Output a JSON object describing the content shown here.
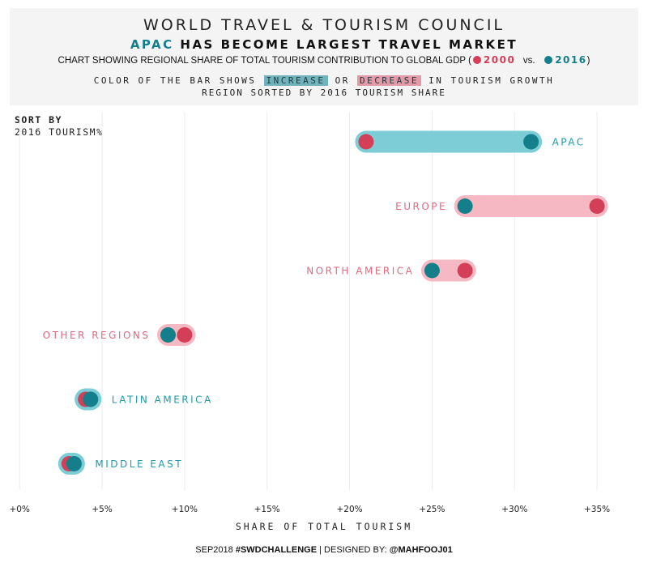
{
  "header": {
    "title": "WORLD TRAVEL & TOURISM COUNCIL",
    "subtitle_accent": "APAC",
    "subtitle_rest": " HAS BECOME LARGEST TRAVEL MARKET",
    "description": "CHART SHOWING REGIONAL SHARE OF TOTAL TOURISM CONTRIBUTION TO GLOBAL GDP (",
    "legend_2000": "2000",
    "legend_vs": "vs.",
    "legend_2016": "2016",
    "description_end": ")",
    "note_prefix": "COLOR OF THE BAR SHOWS",
    "note_increase": "INCREASE",
    "note_or": "OR",
    "note_decrease": "DECREASE",
    "note_suffix": "IN TOURISM GROWTH",
    "note_line2": "REGION SORTED BY 2016 TOURISM SHARE"
  },
  "sort": {
    "label": "SORT BY",
    "value": "2016 TOURISM%"
  },
  "colors": {
    "y2000": "#d23f57",
    "y2016": "#147f8a",
    "increase_bar": "#7ccdd6",
    "decrease_bar": "#f6b9c3",
    "increase_label": "#1f9aa6",
    "decrease_label": "#e0697f",
    "grid": "#ececec"
  },
  "chart_data": {
    "type": "dumbbell",
    "xlabel": "SHARE OF TOTAL TOURISM",
    "xlim": [
      -0.5,
      37.5
    ],
    "ticks": [
      0,
      5,
      10,
      15,
      20,
      25,
      30,
      35
    ],
    "tick_labels": [
      "+0%",
      "+5%",
      "+10%",
      "+15%",
      "+20%",
      "+25%",
      "+30%",
      "+35%"
    ],
    "rows": [
      {
        "region": "APAC",
        "y2000": 21,
        "y2016": 31,
        "trend": "increase"
      },
      {
        "region": "EUROPE",
        "y2000": 35,
        "y2016": 27,
        "trend": "decrease"
      },
      {
        "region": "NORTH AMERICA",
        "y2000": 27,
        "y2016": 25,
        "trend": "decrease"
      },
      {
        "region": "OTHER REGIONS",
        "y2000": 10,
        "y2016": 9,
        "trend": "decrease"
      },
      {
        "region": "LATIN AMERICA",
        "y2000": 4,
        "y2016": 4.3,
        "trend": "increase"
      },
      {
        "region": "MIDDLE EAST",
        "y2000": 3,
        "y2016": 3.3,
        "trend": "increase"
      }
    ]
  },
  "footer": {
    "prefix": "SEP2018 ",
    "hashtag": "#SWDCHALLENGE",
    "middle": " | DESIGNED BY: ",
    "author": "@MAHFOOJ01"
  }
}
